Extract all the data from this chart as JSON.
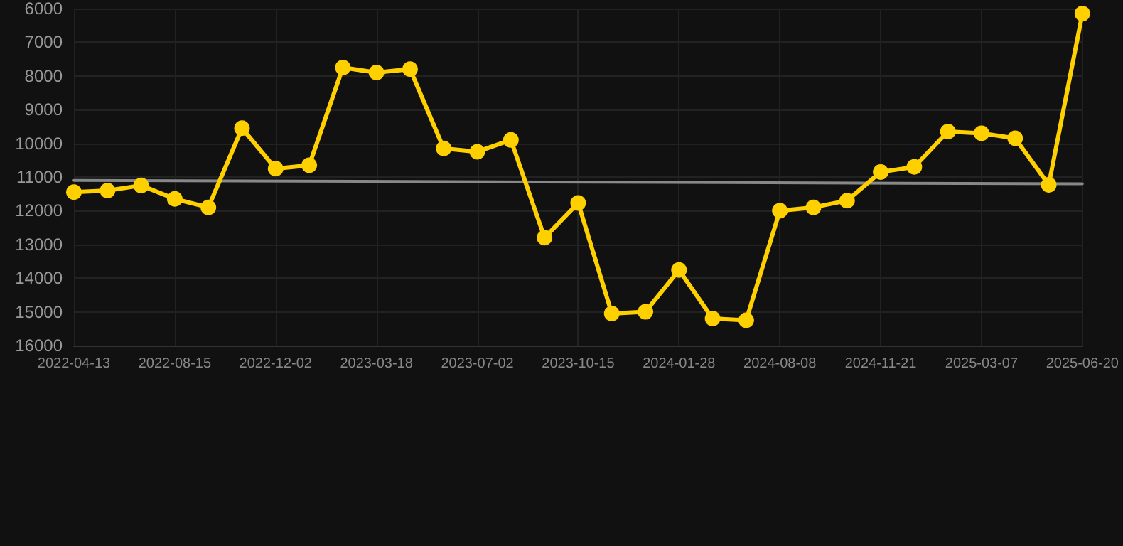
{
  "chart_data": {
    "type": "line",
    "categories": [
      "2022-04-13",
      null,
      null,
      "2022-08-15",
      null,
      null,
      "2022-12-02",
      null,
      null,
      "2023-03-18",
      null,
      null,
      "2023-07-02",
      null,
      null,
      "2023-10-15",
      null,
      null,
      "2024-01-28",
      null,
      null,
      "2024-08-08",
      null,
      null,
      "2024-11-21",
      null,
      null,
      "2025-03-07",
      null,
      null,
      "2025-06-20"
    ],
    "series": [
      {
        "color": "#ffd000",
        "marker": "circle",
        "values": [
          11450,
          11400,
          11250,
          11650,
          11900,
          9550,
          10750,
          10650,
          7750,
          7900,
          7800,
          10150,
          10250,
          9900,
          12800,
          11770,
          15050,
          15000,
          13760,
          15200,
          15250,
          12000,
          11900,
          11700,
          10850,
          10700,
          9650,
          9700,
          9850,
          11230,
          6150
        ]
      },
      {
        "color": "#888888",
        "marker": "none",
        "values": [
          11100,
          null,
          null,
          null,
          null,
          null,
          null,
          null,
          null,
          null,
          null,
          null,
          null,
          null,
          null,
          null,
          null,
          null,
          null,
          null,
          null,
          null,
          null,
          null,
          null,
          null,
          null,
          null,
          null,
          null,
          11200
        ]
      }
    ],
    "ylim": [
      16000,
      6000
    ],
    "yticks": [
      6000,
      7000,
      8000,
      9000,
      10000,
      11000,
      12000,
      13000,
      14000,
      15000,
      16000
    ],
    "grid": true,
    "line_style": "solid"
  }
}
